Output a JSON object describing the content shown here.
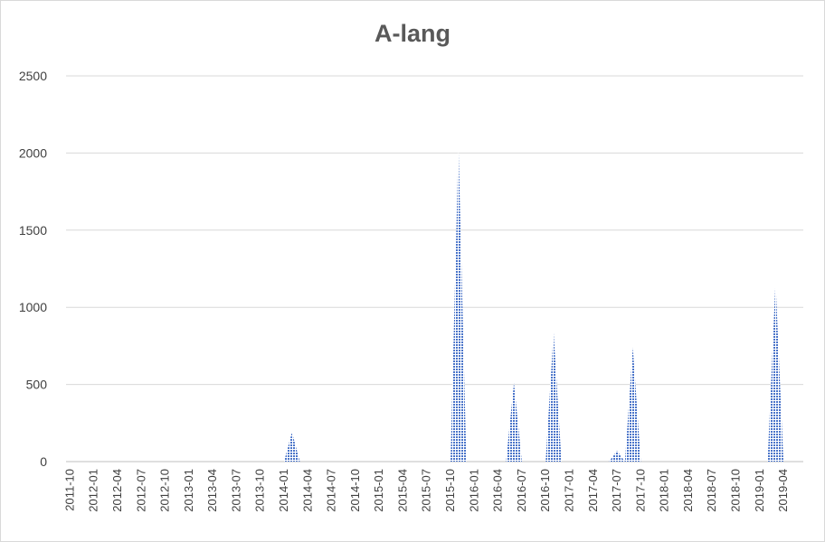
{
  "chart_data": {
    "type": "area",
    "title": "A-lang",
    "xlabel": "",
    "ylabel": "",
    "ylim": [
      0,
      2500
    ],
    "y_ticks": [
      0,
      500,
      1000,
      1500,
      2000,
      2500
    ],
    "grid": true,
    "legend": "none",
    "series_color": "#4a74c9",
    "x_tick_labels": [
      "2011-10",
      "2012-01",
      "2012-04",
      "2012-07",
      "2012-10",
      "2013-01",
      "2013-04",
      "2013-07",
      "2013-10",
      "2014-01",
      "2014-04",
      "2014-07",
      "2014-10",
      "2015-01",
      "2015-04",
      "2015-07",
      "2015-10",
      "2016-01",
      "2016-04",
      "2016-07",
      "2016-10",
      "2017-01",
      "2017-04",
      "2017-07",
      "2017-10",
      "2018-01",
      "2018-04",
      "2018-07",
      "2018-10",
      "2019-01",
      "2019-04"
    ],
    "x": [
      "2011-10",
      "2011-11",
      "2011-12",
      "2012-01",
      "2012-02",
      "2012-03",
      "2012-04",
      "2012-05",
      "2012-06",
      "2012-07",
      "2012-08",
      "2012-09",
      "2012-10",
      "2012-11",
      "2012-12",
      "2013-01",
      "2013-02",
      "2013-03",
      "2013-04",
      "2013-05",
      "2013-06",
      "2013-07",
      "2013-08",
      "2013-09",
      "2013-10",
      "2013-11",
      "2013-12",
      "2014-01",
      "2014-02",
      "2014-03",
      "2014-04",
      "2014-05",
      "2014-06",
      "2014-07",
      "2014-08",
      "2014-09",
      "2014-10",
      "2014-11",
      "2014-12",
      "2015-01",
      "2015-02",
      "2015-03",
      "2015-04",
      "2015-05",
      "2015-06",
      "2015-07",
      "2015-08",
      "2015-09",
      "2015-10",
      "2015-11",
      "2015-12",
      "2016-01",
      "2016-02",
      "2016-03",
      "2016-04",
      "2016-05",
      "2016-06",
      "2016-07",
      "2016-08",
      "2016-09",
      "2016-10",
      "2016-11",
      "2016-12",
      "2017-01",
      "2017-02",
      "2017-03",
      "2017-04",
      "2017-05",
      "2017-06",
      "2017-07",
      "2017-08",
      "2017-09",
      "2017-10",
      "2017-11",
      "2017-12",
      "2018-01",
      "2018-02",
      "2018-03",
      "2018-04",
      "2018-05",
      "2018-06",
      "2018-07",
      "2018-08",
      "2018-09",
      "2018-10",
      "2018-11",
      "2018-12",
      "2019-01",
      "2019-02",
      "2019-03",
      "2019-04",
      "2019-05",
      "2019-06"
    ],
    "values": [
      0,
      0,
      0,
      0,
      0,
      0,
      0,
      0,
      0,
      0,
      0,
      0,
      0,
      0,
      0,
      0,
      0,
      0,
      0,
      0,
      0,
      0,
      0,
      0,
      0,
      0,
      0,
      0,
      190,
      0,
      0,
      0,
      0,
      0,
      0,
      0,
      0,
      0,
      0,
      0,
      0,
      0,
      0,
      0,
      0,
      0,
      0,
      0,
      0,
      2050,
      0,
      0,
      0,
      0,
      0,
      0,
      510,
      0,
      0,
      0,
      0,
      840,
      0,
      0,
      0,
      0,
      0,
      0,
      0,
      70,
      0,
      740,
      0,
      0,
      0,
      0,
      0,
      0,
      0,
      0,
      0,
      0,
      0,
      0,
      0,
      0,
      0,
      0,
      0,
      1170,
      0,
      0,
      0
    ]
  }
}
